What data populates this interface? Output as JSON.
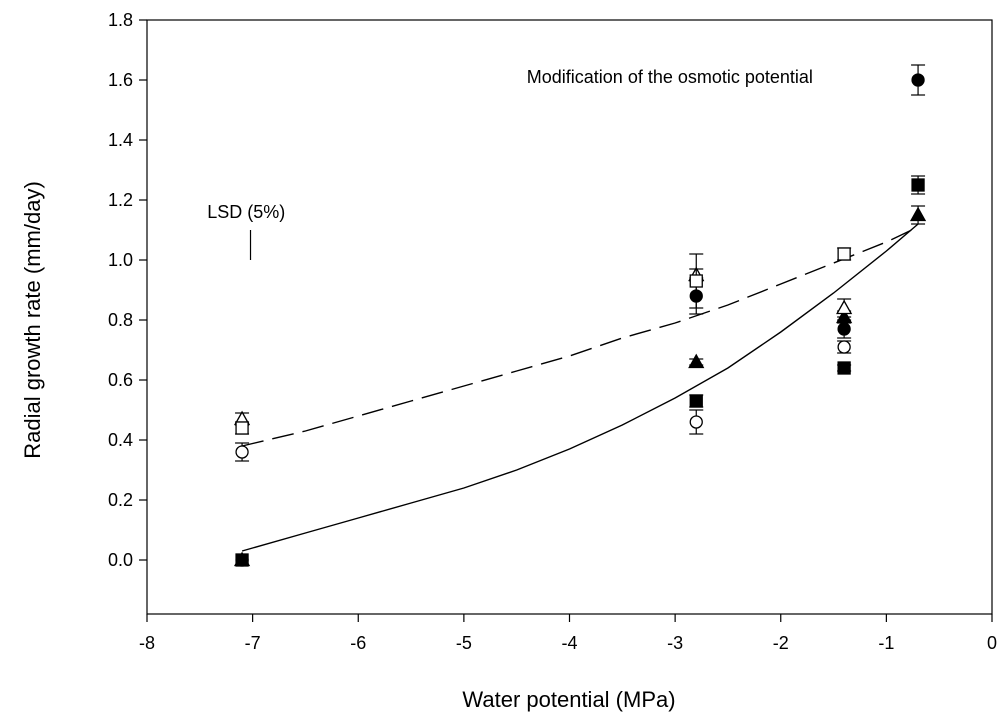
{
  "chart_data": {
    "type": "scatter",
    "title": "",
    "xlabel": "Water potential (MPa)",
    "ylabel": "Radial growth rate (mm/day)",
    "xlim": [
      -8,
      0
    ],
    "ylim": [
      -0.18,
      1.8
    ],
    "xticks": [
      -8,
      -7,
      -6,
      -5,
      -4,
      -3,
      -2,
      -1,
      0
    ],
    "yticks": [
      0.0,
      0.2,
      0.4,
      0.6,
      0.8,
      1.0,
      1.2,
      1.4,
      1.6,
      1.8
    ],
    "annotations": [
      {
        "text": "Modification of the osmotic potential",
        "x": -3.05,
        "y": 1.59
      },
      {
        "text": "LSD (5%)",
        "x": -7.06,
        "y": 1.14
      }
    ],
    "lsd": {
      "x": -7.02,
      "y_low": 1.0,
      "y_high": 1.1
    },
    "series": [
      {
        "marker": "circle-filled",
        "x": [
          -7.1,
          -2.8,
          -1.4,
          -0.7
        ],
        "y": [
          0.0,
          0.88,
          0.77,
          1.6
        ],
        "err": [
          0.0,
          0.06,
          0.03,
          0.05
        ]
      },
      {
        "marker": "circle-open",
        "x": [
          -7.1,
          -2.8,
          -1.4
        ],
        "y": [
          0.36,
          0.46,
          0.71
        ],
        "err": [
          0.03,
          0.04,
          0.02
        ]
      },
      {
        "marker": "triangle-filled",
        "x": [
          -7.1,
          -2.8,
          -1.4,
          -0.7
        ],
        "y": [
          0.0,
          0.66,
          0.81,
          1.15
        ],
        "err": [
          0.0,
          0.01,
          0.02,
          0.03
        ]
      },
      {
        "marker": "triangle-open",
        "x": [
          -7.1,
          -2.8,
          -1.4
        ],
        "y": [
          0.47,
          0.95,
          0.84
        ],
        "err": [
          0.02,
          0.02,
          0.03
        ]
      },
      {
        "marker": "square-filled",
        "x": [
          -7.1,
          -2.8,
          -1.4,
          -0.7
        ],
        "y": [
          0.0,
          0.53,
          0.64,
          1.25
        ],
        "err": [
          0.0,
          0.02,
          0.01,
          0.03
        ]
      },
      {
        "marker": "square-open",
        "x": [
          -7.1,
          -2.8,
          -1.4
        ],
        "y": [
          0.44,
          0.93,
          1.02
        ],
        "err": [
          0.02,
          0.09,
          0.02
        ]
      }
    ],
    "fits": [
      {
        "style": "solid",
        "x": [
          -7.1,
          -6.5,
          -6.0,
          -5.5,
          -5.0,
          -4.5,
          -4.0,
          -3.5,
          -3.0,
          -2.5,
          -2.0,
          -1.5,
          -1.0,
          -0.7
        ],
        "y": [
          0.03,
          0.09,
          0.14,
          0.19,
          0.24,
          0.3,
          0.37,
          0.45,
          0.54,
          0.64,
          0.76,
          0.89,
          1.03,
          1.12
        ]
      },
      {
        "style": "dashed",
        "x": [
          -7.1,
          -6.5,
          -6.0,
          -5.5,
          -5.0,
          -4.5,
          -4.0,
          -3.5,
          -3.0,
          -2.5,
          -2.0,
          -1.5,
          -1.0,
          -0.7
        ],
        "y": [
          0.38,
          0.43,
          0.48,
          0.53,
          0.58,
          0.63,
          0.68,
          0.74,
          0.79,
          0.85,
          0.92,
          0.99,
          1.06,
          1.11
        ]
      }
    ]
  }
}
